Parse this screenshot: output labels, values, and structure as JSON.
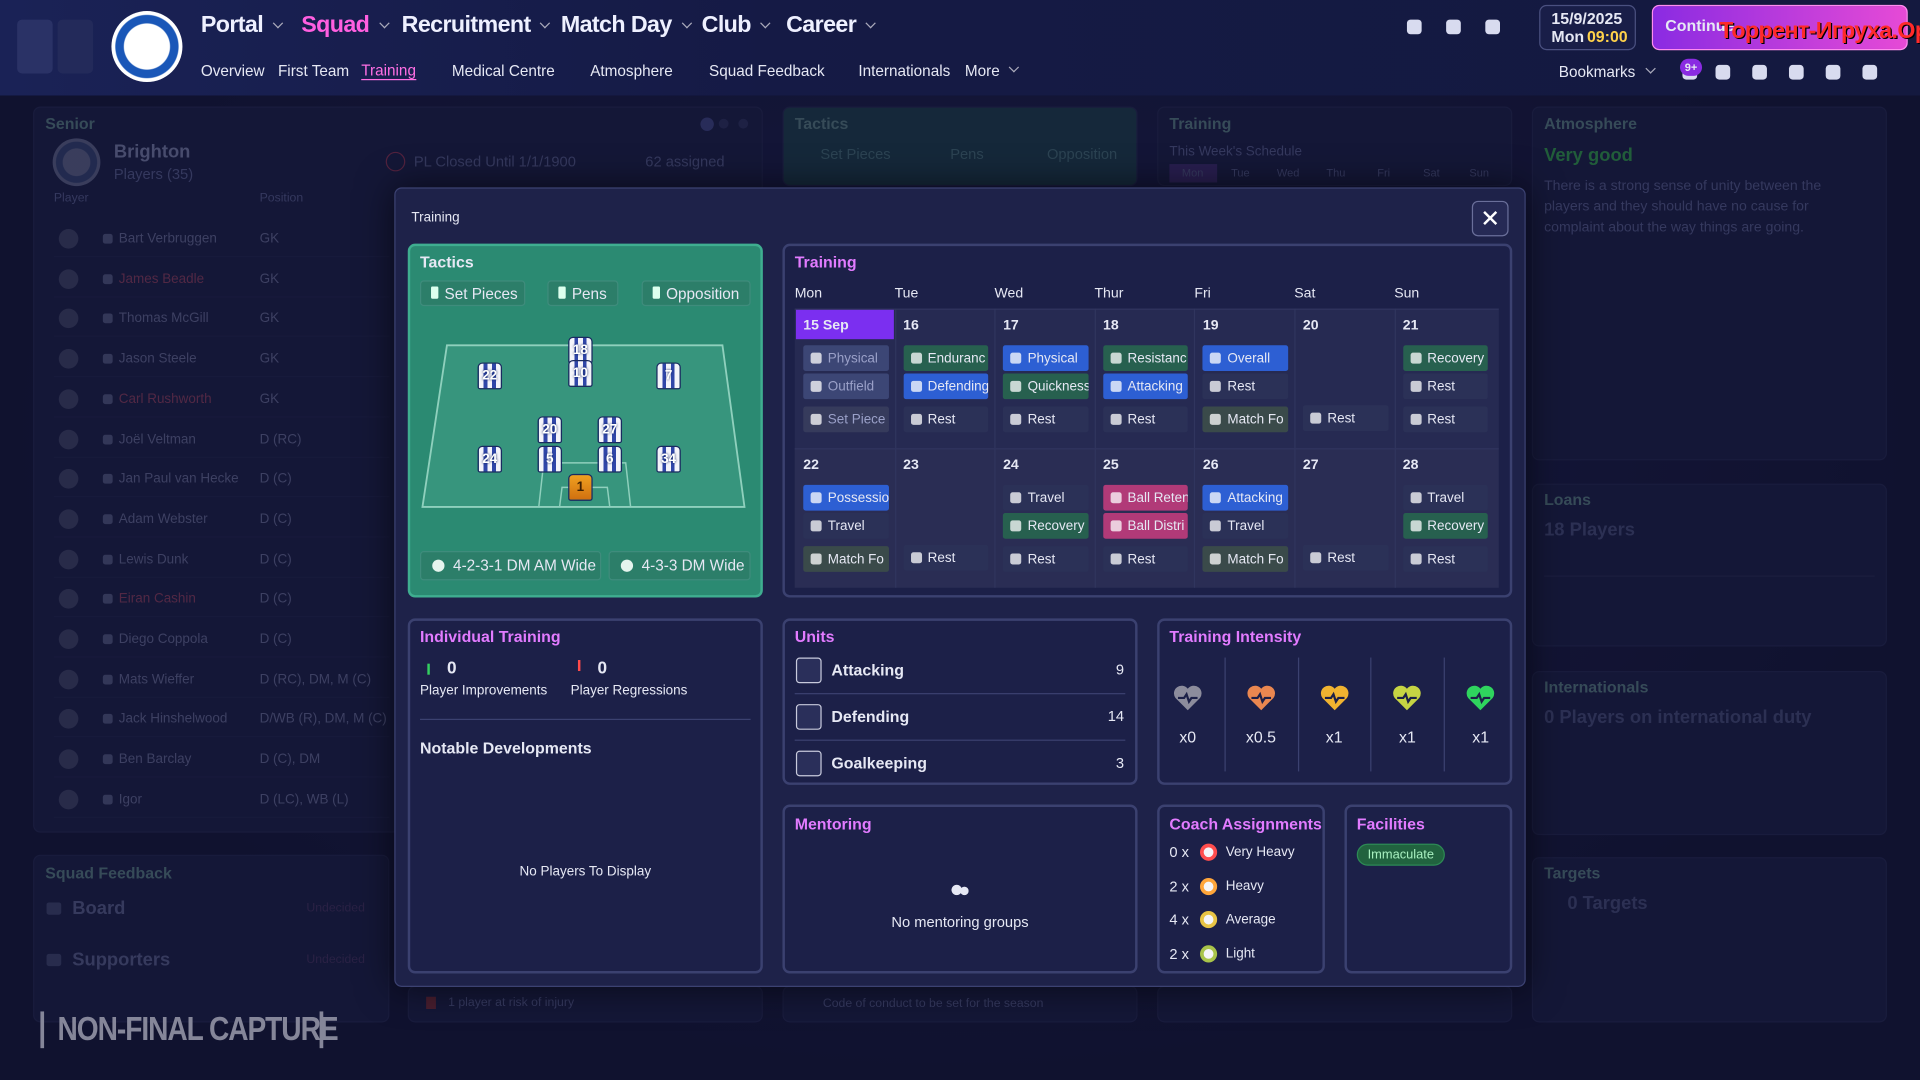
{
  "nav": {
    "menus": [
      "Portal",
      "Squad",
      "Recruitment",
      "Match Day",
      "Club",
      "Career"
    ],
    "submenu": [
      "Overview",
      "First Team",
      "Training",
      "Medical Centre",
      "Atmosphere",
      "Squad Feedback",
      "Internationals",
      "More"
    ],
    "date": "15/9/2025",
    "day": "Mon",
    "time": "09:00",
    "continue": "Continue",
    "watermark": "Торрент-Игруха.Орг",
    "bookmarks": "Bookmarks",
    "badge": "9+"
  },
  "background": {
    "squad": {
      "section": "Senior",
      "club": "Brighton",
      "players_count": "Players (35)",
      "status": "PL Closed Until 1/1/1900",
      "assigned": "62 assigned",
      "columns": [
        "Player",
        "Position"
      ],
      "rows": [
        [
          "Bart Verbruggen",
          "GK"
        ],
        [
          "James Beadle",
          "GK"
        ],
        [
          "Thomas McGill",
          "GK"
        ],
        [
          "Jason Steele",
          "GK"
        ],
        [
          "Carl Rushworth",
          "GK"
        ],
        [
          "Joël Veltman",
          "D (RC)"
        ],
        [
          "Jan Paul van Hecke",
          "D (C)"
        ],
        [
          "Adam Webster",
          "D (C)"
        ],
        [
          "Lewis Dunk",
          "D (C)"
        ],
        [
          "Eiran Cashin",
          "D (C)"
        ],
        [
          "Diego Coppola",
          "D (C)"
        ],
        [
          "Mats Wieffer",
          "D (RC), DM, M (C)"
        ],
        [
          "Jack Hinshelwood",
          "D/WB (R), DM, M (C)"
        ],
        [
          "Ben Barclay",
          "D (C), DM"
        ],
        [
          "Igor",
          "D (LC), WB (L)"
        ]
      ]
    },
    "squad_feedback": {
      "title": "Squad Feedback",
      "rows": [
        [
          "Board",
          "Undecided"
        ],
        [
          "Supporters",
          "Undecided"
        ]
      ]
    },
    "tactics": {
      "title": "Tactics",
      "tabs": [
        "Set Pieces",
        "Pens",
        "Opposition"
      ]
    },
    "training": {
      "title": "Training",
      "subtitle": "This Week's Schedule",
      "days": [
        "Mon",
        "Tue",
        "Wed",
        "Thu",
        "Fri",
        "Sat",
        "Sun"
      ]
    },
    "atmosphere": {
      "title": "Atmosphere",
      "rating": "Very good",
      "text": "There is a strong sense of unity between the players and they should have no cause for complaint about the way things are going."
    },
    "loans": {
      "title": "Loans",
      "value": "18 Players"
    },
    "internationals": {
      "title": "Internationals",
      "value": "0 Players on international duty"
    },
    "targets": {
      "title": "Targets",
      "value": "0 Targets"
    },
    "notes": [
      "1 player at risk of injury",
      "Code of conduct to be set for the season"
    ],
    "capture": "NON-FINAL CAPTURE"
  },
  "modal": {
    "title": "Training",
    "tactics": {
      "title": "Tactics",
      "tabs": [
        "Set Pieces",
        "Pens",
        "Opposition"
      ],
      "shirts": [
        22,
        18,
        10,
        7,
        20,
        27,
        24,
        5,
        6,
        34,
        1
      ],
      "formations": [
        "4-2-3-1 DM AM Wide",
        "4-3-3 DM Wide"
      ]
    },
    "schedule": {
      "title": "Training",
      "days": [
        "Mon",
        "Tue",
        "Wed",
        "Thur",
        "Fri",
        "Sat",
        "Sun"
      ],
      "weeks": [
        [
          {
            "date": "15 Sep",
            "sessions": [
              {
                "name": "Physical",
                "color": "#3c4675"
              },
              {
                "name": "Outfield",
                "color": "#3c4675"
              },
              {
                "name": "Set Piece",
                "color": "#363b5c"
              }
            ]
          },
          {
            "date": "16",
            "sessions": [
              {
                "name": "Enduranc",
                "color": "#27604f"
              },
              {
                "name": "Defending",
                "color": "#2d5fd3"
              },
              {
                "name": "Rest",
                "color": "#2b3157"
              }
            ]
          },
          {
            "date": "17",
            "sessions": [
              {
                "name": "Physical",
                "color": "#2d5fd3"
              },
              {
                "name": "Quickness",
                "color": "#27604f"
              },
              {
                "name": "Rest",
                "color": "#2b3157"
              }
            ]
          },
          {
            "date": "18",
            "sessions": [
              {
                "name": "Resistanc",
                "color": "#27604f"
              },
              {
                "name": "Attacking",
                "color": "#2d5fd3"
              },
              {
                "name": "Rest",
                "color": "#2b3157"
              }
            ]
          },
          {
            "date": "19",
            "sessions": [
              {
                "name": "Overall",
                "color": "#2d5fd3"
              },
              {
                "name": "Rest",
                "color": "#2b3157"
              },
              {
                "name": "Match Fo",
                "color": "#3a4a4a"
              }
            ]
          },
          {
            "date": "20",
            "sessions": [
              {
                "name": "Rest",
                "color": "#2b3157"
              }
            ]
          },
          {
            "date": "21",
            "sessions": [
              {
                "name": "Recovery",
                "color": "#27604f"
              },
              {
                "name": "Rest",
                "color": "#2b3157"
              },
              {
                "name": "Rest",
                "color": "#2b3157"
              }
            ]
          }
        ],
        [
          {
            "date": "22",
            "sessions": [
              {
                "name": "Possessio",
                "color": "#2d5fd3"
              },
              {
                "name": "Travel",
                "color": "#2b3157"
              },
              {
                "name": "Match Fo",
                "color": "#3a4a4a"
              }
            ]
          },
          {
            "date": "23",
            "sessions": [
              {
                "name": "Rest",
                "color": "#2b3157"
              }
            ]
          },
          {
            "date": "24",
            "sessions": [
              {
                "name": "Travel",
                "color": "#2b3157"
              },
              {
                "name": "Recovery",
                "color": "#27604f"
              },
              {
                "name": "Rest",
                "color": "#2b3157"
              }
            ]
          },
          {
            "date": "25",
            "sessions": [
              {
                "name": "Ball Reten",
                "color": "#b13a78"
              },
              {
                "name": "Ball Distri",
                "color": "#b13a78"
              },
              {
                "name": "Rest",
                "color": "#2b3157"
              }
            ]
          },
          {
            "date": "26",
            "sessions": [
              {
                "name": "Attacking",
                "color": "#2d5fd3"
              },
              {
                "name": "Travel",
                "color": "#2b3157"
              },
              {
                "name": "Match Fo",
                "color": "#3a4a4a"
              }
            ]
          },
          {
            "date": "27",
            "sessions": [
              {
                "name": "Rest",
                "color": "#2b3157"
              }
            ]
          },
          {
            "date": "28",
            "sessions": [
              {
                "name": "Travel",
                "color": "#2b3157"
              },
              {
                "name": "Recovery",
                "color": "#27604f"
              },
              {
                "name": "Rest",
                "color": "#2b3157"
              }
            ]
          }
        ]
      ]
    },
    "individual": {
      "title": "Individual Training",
      "improvements": {
        "value": 0,
        "label": "Player Improvements"
      },
      "regressions": {
        "value": 0,
        "label": "Player Regressions"
      },
      "notable": "Notable Developments",
      "empty": "No Players To Display"
    },
    "units": {
      "title": "Units",
      "rows": [
        {
          "name": "Attacking",
          "value": 9
        },
        {
          "name": "Defending",
          "value": 14
        },
        {
          "name": "Goalkeeping",
          "value": 3
        }
      ]
    },
    "intensity": {
      "title": "Training Intensity",
      "levels": [
        {
          "label": "x0",
          "color": "#8c8c9c"
        },
        {
          "label": "x0.5",
          "color": "#ea8750"
        },
        {
          "label": "x1",
          "color": "#f0b330"
        },
        {
          "label": "x1",
          "color": "#c6d443"
        },
        {
          "label": "x1",
          "color": "#2fd45e"
        }
      ]
    },
    "mentoring": {
      "title": "Mentoring",
      "empty": "No mentoring groups"
    },
    "coaches": {
      "title": "Coach Assignments",
      "rows": [
        {
          "count": "0 x",
          "level": "Very Heavy",
          "color": "#ff4d4d"
        },
        {
          "count": "2 x",
          "level": "Heavy",
          "color": "#ffa53a"
        },
        {
          "count": "4 x",
          "level": "Average",
          "color": "#e8c445"
        },
        {
          "count": "2 x",
          "level": "Light",
          "color": "#a9c44a"
        }
      ]
    },
    "facilities": {
      "title": "Facilities",
      "rating": "Immaculate"
    }
  }
}
